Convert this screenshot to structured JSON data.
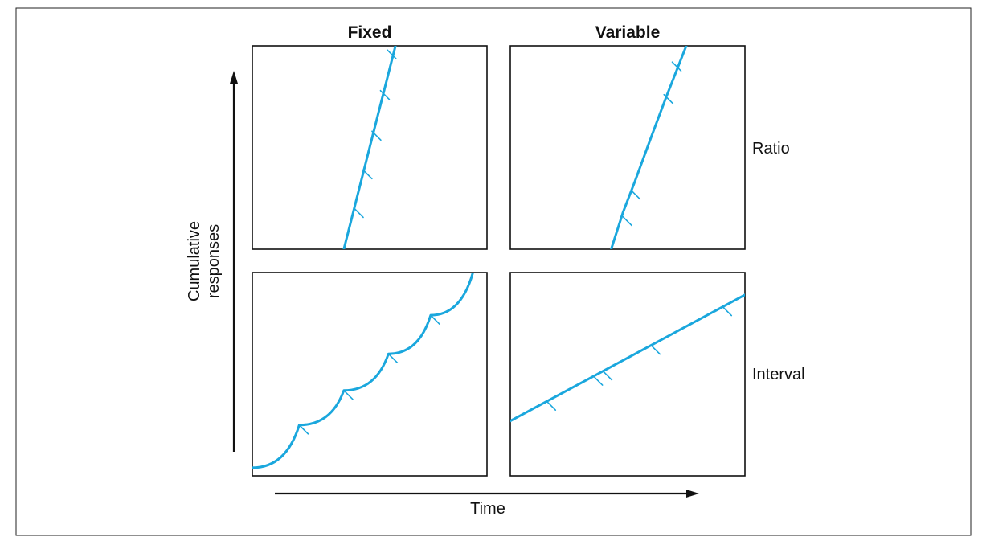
{
  "columns": [
    "Fixed",
    "Variable"
  ],
  "rows": [
    "Ratio",
    "Interval"
  ],
  "axes": {
    "y_label_line1": "Cumulative",
    "y_label_line2": "responses",
    "x_label": "Time"
  },
  "colors": {
    "curve": "#1aa7dd",
    "frame": "#222222"
  },
  "panels": [
    {
      "id": "fixed-ratio",
      "path": [
        [
          0.39,
          0.0
        ],
        [
          0.61,
          1.0
        ]
      ],
      "ticks": [
        [
          0.435,
          0.2
        ],
        [
          0.472,
          0.39
        ],
        [
          0.51,
          0.58
        ],
        [
          0.546,
          0.78
        ],
        [
          0.575,
          0.98
        ]
      ]
    },
    {
      "id": "variable-ratio",
      "path": [
        [
          0.43,
          0.0
        ],
        [
          0.48,
          0.18
        ],
        [
          0.53,
          0.33
        ],
        [
          0.6,
          0.55
        ],
        [
          0.665,
          0.75
        ],
        [
          0.75,
          1.0
        ]
      ],
      "ticks": [
        [
          0.48,
          0.16
        ],
        [
          0.515,
          0.29
        ],
        [
          0.655,
          0.76
        ],
        [
          0.69,
          0.92
        ]
      ]
    },
    {
      "id": "fixed-interval",
      "path": "scallops",
      "scallops": [
        [
          0.0,
          0.04
        ],
        [
          0.2,
          0.25
        ],
        [
          0.39,
          0.42
        ],
        [
          0.58,
          0.6
        ],
        [
          0.76,
          0.79
        ],
        [
          0.94,
          1.0
        ]
      ],
      "ticks": [
        [
          0.2,
          0.25
        ],
        [
          0.39,
          0.42
        ],
        [
          0.58,
          0.6
        ],
        [
          0.76,
          0.79
        ]
      ]
    },
    {
      "id": "variable-interval",
      "path": [
        [
          0.0,
          0.27
        ],
        [
          1.0,
          0.89
        ]
      ],
      "ticks": [
        [
          0.155,
          0.367
        ],
        [
          0.355,
          0.49
        ],
        [
          0.395,
          0.515
        ],
        [
          0.6,
          0.642
        ],
        [
          0.905,
          0.832
        ]
      ]
    }
  ]
}
